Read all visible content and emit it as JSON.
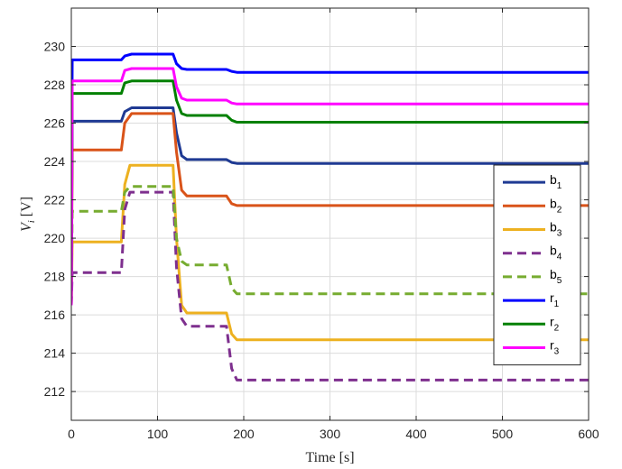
{
  "chart_data": {
    "type": "line",
    "xlabel": "Time [s]",
    "ylabel": "V_i [V]",
    "ylabel_base": "V",
    "ylabel_sub": "i",
    "ylabel_unit": "[V]",
    "xlim": [
      0,
      600
    ],
    "ylim": [
      210.5,
      232
    ],
    "xticks": [
      0,
      100,
      200,
      300,
      400,
      500,
      600
    ],
    "yticks": [
      212,
      214,
      216,
      218,
      220,
      222,
      224,
      226,
      228,
      230
    ],
    "grid": true,
    "legend_position": "right",
    "series": [
      {
        "name": "b1",
        "name_base": "b",
        "name_sub": "1",
        "color": "#1f3a93",
        "dash": "solid",
        "x": [
          0,
          1,
          58,
          62,
          70,
          118,
          122,
          128,
          134,
          180,
          186,
          192,
          600
        ],
        "y": [
          216.5,
          226.1,
          226.1,
          226.6,
          226.8,
          226.8,
          225.5,
          224.3,
          224.1,
          224.1,
          223.95,
          223.9,
          223.9
        ]
      },
      {
        "name": "b2",
        "name_base": "b",
        "name_sub": "2",
        "color": "#d95319",
        "dash": "solid",
        "x": [
          0,
          1,
          58,
          62,
          70,
          118,
          122,
          128,
          134,
          180,
          186,
          192,
          600
        ],
        "y": [
          216.5,
          224.6,
          224.6,
          226.0,
          226.5,
          226.5,
          224.5,
          222.5,
          222.2,
          222.2,
          221.8,
          221.7,
          221.7
        ]
      },
      {
        "name": "b3",
        "name_base": "b",
        "name_sub": "3",
        "color": "#edb120",
        "dash": "solid",
        "x": [
          0,
          1,
          58,
          62,
          68,
          118,
          122,
          128,
          134,
          180,
          186,
          192,
          600
        ],
        "y": [
          216.5,
          219.8,
          219.8,
          222.8,
          223.8,
          223.8,
          220.0,
          216.5,
          216.1,
          216.1,
          215.0,
          214.7,
          214.7
        ]
      },
      {
        "name": "b4",
        "name_base": "b",
        "name_sub": "4",
        "color": "#7e2f8e",
        "dash": "dashed",
        "x": [
          0,
          1,
          58,
          62,
          68,
          118,
          122,
          128,
          134,
          180,
          186,
          192,
          600
        ],
        "y": [
          216.5,
          218.2,
          218.2,
          221.5,
          222.4,
          222.4,
          218.5,
          215.8,
          215.4,
          215.4,
          213.2,
          212.6,
          212.6
        ]
      },
      {
        "name": "b5",
        "name_base": "b",
        "name_sub": "5",
        "color": "#77ac30",
        "dash": "dashed",
        "x": [
          0,
          1,
          58,
          62,
          68,
          118,
          122,
          128,
          134,
          180,
          186,
          192,
          600
        ],
        "y": [
          216.5,
          221.4,
          221.4,
          222.4,
          222.7,
          222.7,
          220.0,
          218.8,
          218.6,
          218.6,
          217.4,
          217.1,
          217.1
        ]
      },
      {
        "name": "r1",
        "name_base": "r",
        "name_sub": "1",
        "color": "#0000ff",
        "dash": "solid",
        "x": [
          0,
          1,
          58,
          62,
          70,
          118,
          122,
          128,
          134,
          180,
          186,
          192,
          600
        ],
        "y": [
          216.5,
          229.3,
          229.3,
          229.5,
          229.6,
          229.6,
          229.1,
          228.85,
          228.8,
          228.8,
          228.7,
          228.65,
          228.65
        ]
      },
      {
        "name": "r2",
        "name_base": "r",
        "name_sub": "2",
        "color": "#008000",
        "dash": "solid",
        "x": [
          0,
          1,
          58,
          62,
          70,
          118,
          122,
          128,
          134,
          180,
          186,
          192,
          600
        ],
        "y": [
          216.5,
          227.55,
          227.55,
          228.1,
          228.2,
          228.2,
          227.2,
          226.5,
          226.4,
          226.4,
          226.15,
          226.05,
          226.05
        ]
      },
      {
        "name": "r3",
        "name_base": "r",
        "name_sub": "3",
        "color": "#ff00ff",
        "dash": "solid",
        "x": [
          0,
          1,
          58,
          62,
          70,
          118,
          122,
          128,
          134,
          180,
          186,
          192,
          600
        ],
        "y": [
          216.5,
          228.2,
          228.2,
          228.75,
          228.85,
          228.85,
          227.9,
          227.3,
          227.2,
          227.2,
          227.05,
          227.0,
          227.0
        ]
      }
    ]
  }
}
